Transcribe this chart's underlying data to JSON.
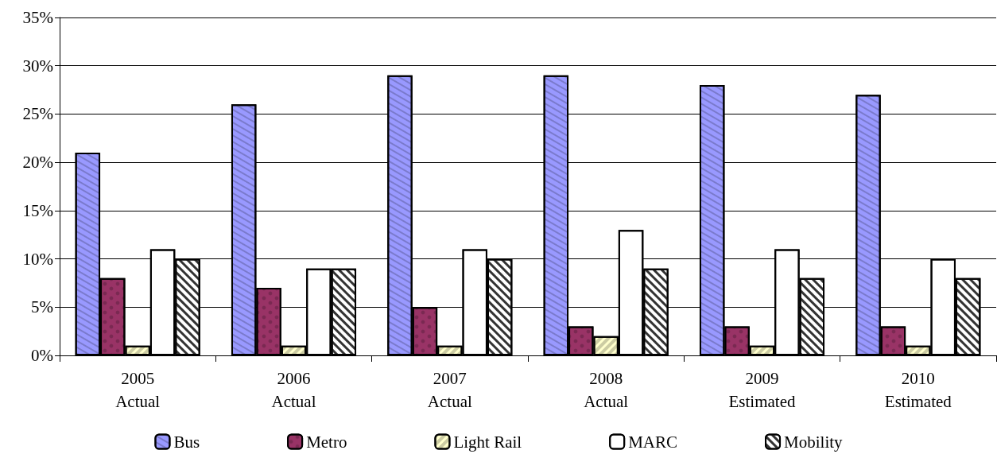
{
  "chart_data": {
    "type": "bar",
    "categories": [
      "2005\nActual",
      "2006\nActual",
      "2007\nActual",
      "2008\nActual",
      "2009\nEstimated",
      "2010\nEstimated"
    ],
    "series": [
      {
        "name": "Bus",
        "color": "#9999ff",
        "values": [
          21,
          26,
          29,
          29,
          28,
          27
        ]
      },
      {
        "name": "Metro",
        "color": "#993366",
        "values": [
          8,
          7,
          5,
          3,
          3,
          3
        ]
      },
      {
        "name": "Light Rail",
        "color": "#ffffcc",
        "values": [
          1,
          1,
          1,
          2,
          1,
          1
        ]
      },
      {
        "name": "MARC",
        "color": "#ffffff",
        "values": [
          11,
          9,
          11,
          13,
          11,
          10
        ]
      },
      {
        "name": "Mobility",
        "color": "#ffffff",
        "values": [
          10,
          9,
          10,
          9,
          8,
          8
        ]
      }
    ],
    "ylim": [
      0,
      35
    ],
    "yticks": [
      {
        "value": 0,
        "label": "0%"
      },
      {
        "value": 5,
        "label": "5%"
      },
      {
        "value": 10,
        "label": "10%"
      },
      {
        "value": 15,
        "label": "15%"
      },
      {
        "value": 20,
        "label": "20%"
      },
      {
        "value": 25,
        "label": "25%"
      },
      {
        "value": 30,
        "label": "30%"
      },
      {
        "value": 35,
        "label": "35%"
      }
    ],
    "grid": "y",
    "legend": "bottom"
  }
}
